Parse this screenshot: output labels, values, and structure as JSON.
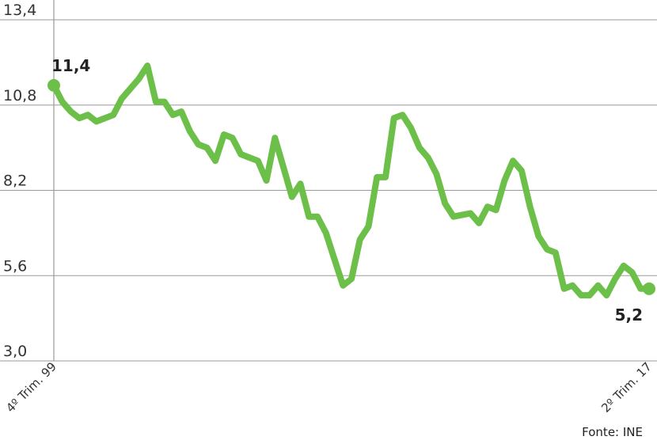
{
  "chart_data": {
    "type": "line",
    "ylim": [
      3.0,
      13.4
    ],
    "y_ticks": [
      "13,4",
      "10,8",
      "8,2",
      "5,6",
      "3,0"
    ],
    "y_tick_values": [
      13.4,
      10.8,
      8.2,
      5.6,
      3.0
    ],
    "x_tick_labels": [
      "4º Trim. 99",
      "2º Trim. 17"
    ],
    "grid": true,
    "series": [
      {
        "color": "#6cc04a",
        "values": [
          11.4,
          10.9,
          10.6,
          10.4,
          10.5,
          10.3,
          10.4,
          10.5,
          11.0,
          11.3,
          11.6,
          12.0,
          10.9,
          10.9,
          10.5,
          10.6,
          10.0,
          9.6,
          9.5,
          9.1,
          9.9,
          9.8,
          9.3,
          9.2,
          9.1,
          8.5,
          9.8,
          8.9,
          8.0,
          8.4,
          7.4,
          7.4,
          6.9,
          6.1,
          5.3,
          5.5,
          6.7,
          7.1,
          8.6,
          8.6,
          10.4,
          10.5,
          10.1,
          9.5,
          9.2,
          8.7,
          7.8,
          7.4,
          7.45,
          7.5,
          7.2,
          7.7,
          7.6,
          8.5,
          9.1,
          8.8,
          7.7,
          6.8,
          6.4,
          6.3,
          5.2,
          5.3,
          5.0,
          5.0,
          5.3,
          5.0,
          5.5,
          5.9,
          5.7,
          5.2,
          5.2
        ]
      }
    ],
    "annotations": [
      {
        "label": "11,4",
        "value": 11.4,
        "point": "first"
      },
      {
        "label": "5,2",
        "value": 5.2,
        "point": "last"
      }
    ],
    "source": "Fonte: INE"
  }
}
